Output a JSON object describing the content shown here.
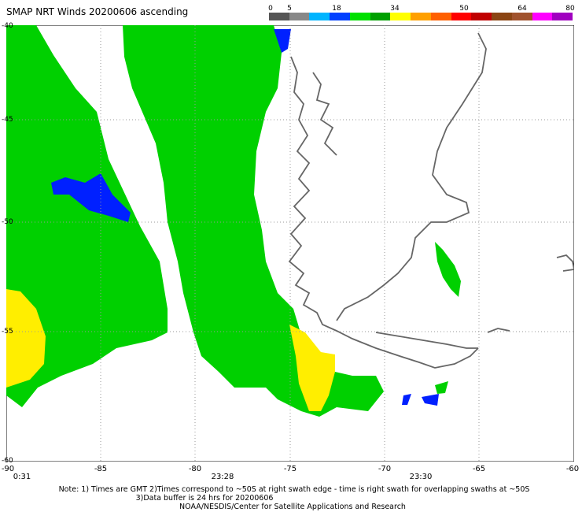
{
  "title": "SMAP NRT Winds 20200606 ascending",
  "colorbar": {
    "ticks": [
      "0",
      "5",
      "18",
      "34",
      "50",
      "64",
      "80"
    ],
    "colors": [
      "#555555",
      "#888888",
      "#00b4ff",
      "#0040ff",
      "#00e000",
      "#00a000",
      "#ffff00",
      "#ffa000",
      "#ff6000",
      "#ff0000",
      "#c00000",
      "#8b4513",
      "#a0522d",
      "#ff00ff",
      "#a000c0"
    ]
  },
  "map": {
    "lon_ticks": [
      "-90",
      "-85",
      "-80",
      "-75",
      "-70",
      "-65",
      "-60"
    ],
    "lat_ticks": [
      "-40",
      "-45",
      "-50",
      "-55",
      "-60"
    ],
    "time_labels": [
      "0:31",
      "23:28",
      "23:30"
    ],
    "fill_colors": {
      "wind_green": "#00d000",
      "wind_blue": "#0020ff",
      "wind_yellow": "#ffee00",
      "coast": "#666666",
      "grid": "#999999"
    }
  },
  "notes": {
    "line1": "Note: 1) Times are GMT 2)Times correspond to ~50S at right swath edge - time is right swath for overlapping swaths at ~50S",
    "line2": "3)Data buffer is 24 hrs for 20200606",
    "line3": "NOAA/NESDIS/Center for Satellite Applications and Research"
  }
}
